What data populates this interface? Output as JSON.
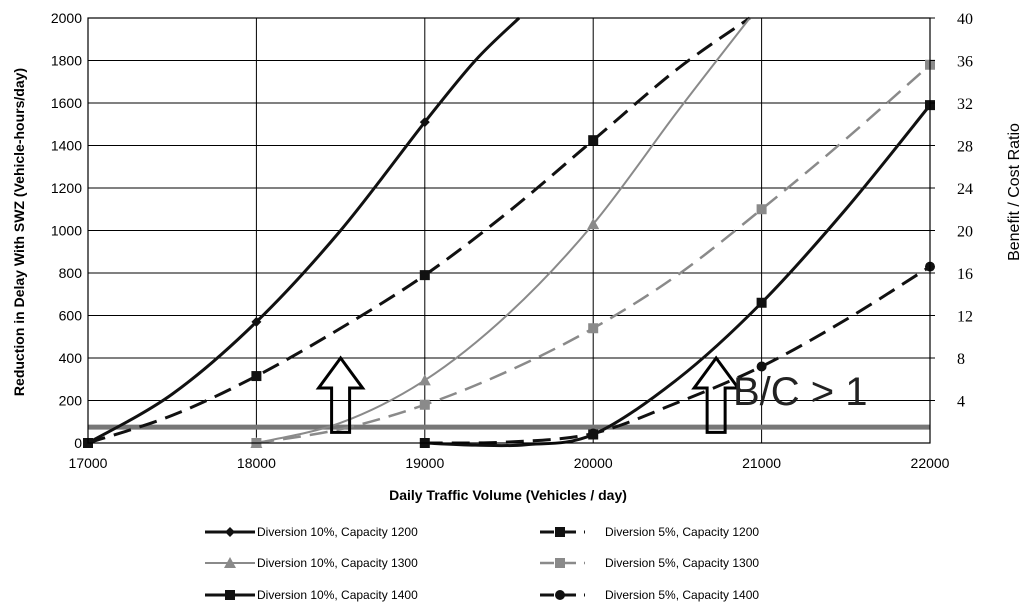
{
  "chart_data": {
    "type": "line",
    "xlabel": "Daily Traffic Volume (Vehicles / day)",
    "ylabel": "Reduction in Delay With SWZ (Vehicle-hours/day)",
    "y2label": "Benefit / Cost Ratio",
    "xlim": [
      17000,
      22000
    ],
    "ylim": [
      0,
      2000
    ],
    "y2lim": [
      0,
      40
    ],
    "x_ticks": [
      "17000",
      "18000",
      "19000",
      "20000",
      "21000",
      "22000"
    ],
    "y_ticks": [
      "0",
      "200",
      "400",
      "600",
      "800",
      "1000",
      "1200",
      "1400",
      "1600",
      "1800",
      "2000"
    ],
    "y2_ticks": [
      "4",
      "8",
      "12",
      "16",
      "20",
      "24",
      "28",
      "32",
      "36",
      "40"
    ],
    "grid": true,
    "legend_position": "bottom",
    "annotation": "B/C > 1",
    "threshold_line": {
      "y": 75,
      "color": "#777777"
    },
    "arrows": [
      {
        "x": 18500,
        "y_base": 50,
        "y_top": 400
      },
      {
        "x": 20730,
        "y_base": 50,
        "y_top": 400
      }
    ],
    "series": [
      {
        "name": "Diversion 10%, Capacity 1200",
        "marker": "diamond",
        "dash": "solid",
        "color": "#111111",
        "width": 3,
        "x": [
          17000,
          17500,
          18000,
          18500,
          19000,
          19300,
          19560
        ],
        "y": [
          0,
          230,
          570,
          1000,
          1510,
          1800,
          2000
        ]
      },
      {
        "name": "Diversion 5%, Capacity 1200",
        "marker": "square",
        "dash": "dash",
        "color": "#111111",
        "width": 3,
        "x": [
          17000,
          17500,
          18000,
          18500,
          19000,
          19500,
          20000,
          20500,
          20930
        ],
        "y": [
          0,
          130,
          315,
          540,
          790,
          1090,
          1425,
          1760,
          2000
        ]
      },
      {
        "name": "Diversion 10%, Capacity 1300",
        "marker": "triangle",
        "dash": "solid",
        "color": "#8a8a8a",
        "width": 2,
        "x": [
          18000,
          18500,
          19000,
          19500,
          20000,
          20500,
          20930
        ],
        "y": [
          0,
          95,
          295,
          610,
          1030,
          1560,
          2000
        ]
      },
      {
        "name": "Diversion 5%, Capacity 1300",
        "marker": "square",
        "dash": "dash",
        "color": "#8a8a8a",
        "width": 2.5,
        "x": [
          18000,
          18500,
          19000,
          19500,
          20000,
          20500,
          21000,
          21500,
          22000
        ],
        "y": [
          0,
          65,
          180,
          340,
          540,
          790,
          1100,
          1430,
          1780
        ]
      },
      {
        "name": "Diversion 10%, Capacity 1400",
        "marker": "square",
        "dash": "solid",
        "color": "#111111",
        "width": 3,
        "x": [
          19000,
          19300,
          19600,
          20000,
          20500,
          21000,
          21500,
          22000
        ],
        "y": [
          0,
          -10,
          -8,
          40,
          300,
          660,
          1100,
          1590
        ]
      },
      {
        "name": "Diversion 5%, Capacity 1400",
        "marker": "circle",
        "dash": "dash",
        "color": "#111111",
        "width": 3,
        "x": [
          19000,
          19500,
          20000,
          20500,
          21000,
          21500,
          22000
        ],
        "y": [
          0,
          5,
          45,
          190,
          360,
          580,
          830
        ]
      }
    ]
  }
}
